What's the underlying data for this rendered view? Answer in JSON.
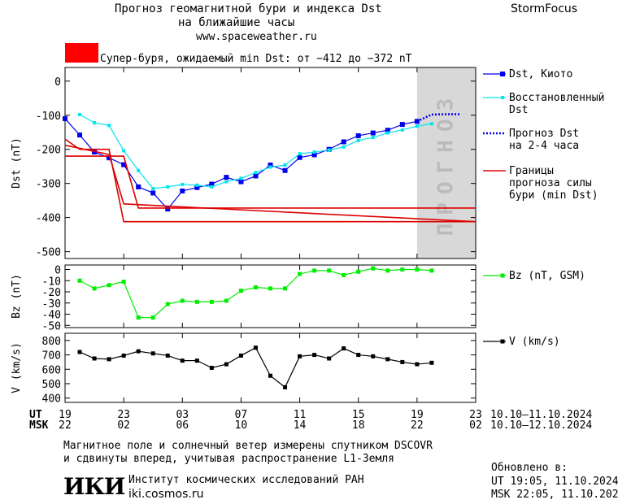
{
  "header": {
    "title_line1": "Прогноз геомагнитной бури и индекса Dst",
    "title_line2": "на ближайшие часы",
    "url": "www.spaceweather.ru",
    "brand": "StormFocus",
    "alert_text": "Супер-буря, ожидаемый min Dst: от −412 до −372 nT",
    "alert_color": "#ff0000"
  },
  "legend": {
    "dst_kyoto": "Dst, Киото",
    "dst_restored_l1": "Восстановленный",
    "dst_restored_l2": "Dst",
    "forecast_l1": "Прогноз Dst",
    "forecast_l2": "на 2-4 часа",
    "bounds_l1": "Границы",
    "bounds_l2": "прогноза силы",
    "bounds_l3": "бури (min Dst)",
    "bz": "Bz (nT, GSM)",
    "v": "V (km/s)"
  },
  "forecast_label": "ПРОГНОЗ",
  "time_axis": {
    "ut_label": "UT",
    "msk_label": "MSK",
    "ut_ticks": [
      "19",
      "23",
      "03",
      "07",
      "11",
      "15",
      "19",
      "23"
    ],
    "msk_ticks": [
      "22",
      "02",
      "06",
      "10",
      "14",
      "18",
      "22",
      "02"
    ],
    "ut_range": "10.10–11.10.2024",
    "msk_range": "10.10–12.10.2024"
  },
  "footer": {
    "note_l1": "Магнитное поле и солнечный ветер измерены спутником DSCOVR",
    "note_l2": "и сдвинуты вперед, учитывая распространение L1-Земля",
    "logo": "ИКИ",
    "inst_name": "Институт космических исследований РАН",
    "inst_url": "iki.cosmos.ru",
    "updated_label": "Обновлено в:",
    "updated_ut": "UT  19:05, 11.10.2024",
    "updated_msk": "MSK 22:05, 11.10.2024"
  },
  "colors": {
    "dst": "#0000ee",
    "restored": "#00e5ee",
    "forecast": "#0000ee",
    "bounds": "#dd0000",
    "bz": "#00ee00",
    "v": "#000000",
    "forecast_zone": "#d8d8d8"
  },
  "chart_data": [
    {
      "type": "line",
      "ylabel": "Dst (nT)",
      "ylim": [
        -520,
        40
      ],
      "yticks": [
        0,
        -100,
        -200,
        -300,
        -400,
        -500
      ],
      "x_unit": "hours from 19 UT 10.10.2024",
      "xlim": [
        0,
        28
      ],
      "forecast_zone": [
        24,
        28
      ],
      "series": [
        {
          "name": "Dst, Киото",
          "x": [
            0,
            1,
            2,
            3,
            4,
            5,
            6,
            7,
            8,
            9,
            10,
            11,
            12,
            13,
            14,
            15,
            16,
            17,
            18,
            19,
            20,
            21,
            22,
            23,
            24
          ],
          "values": [
            -110,
            -158,
            -208,
            -225,
            -245,
            -310,
            -328,
            -375,
            -322,
            -312,
            -302,
            -282,
            -295,
            -278,
            -246,
            -262,
            -224,
            -216,
            -200,
            -178,
            -160,
            -152,
            -144,
            -127,
            -118
          ]
        },
        {
          "name": "Восстановленный Dst",
          "x": [
            1,
            2,
            3,
            4,
            5,
            6,
            7,
            8,
            9,
            10,
            11,
            12,
            13,
            14,
            15,
            16,
            17,
            18,
            19,
            20,
            21,
            22,
            23,
            24,
            25
          ],
          "values": [
            -98,
            -122,
            -130,
            -204,
            -262,
            -315,
            -310,
            -303,
            -305,
            -310,
            -295,
            -285,
            -268,
            -252,
            -246,
            -213,
            -208,
            -202,
            -193,
            -174,
            -165,
            -152,
            -143,
            -132,
            -125
          ]
        },
        {
          "name": "Прогноз Dst на 2-4 часа",
          "x": [
            24,
            25,
            26,
            27
          ],
          "values": [
            -118,
            -98,
            -97,
            -97
          ]
        },
        {
          "name": "Границы прогноза силы бури (min Dst)",
          "x": [
            0,
            3,
            4,
            5,
            28
          ],
          "values": [
            -220,
            -220,
            -220,
            -372,
            -372
          ]
        },
        {
          "name": "",
          "x": [
            0,
            1,
            3,
            4,
            28
          ],
          "values": [
            -170,
            -200,
            -200,
            -412,
            -412
          ]
        },
        {
          "name": "",
          "x": [
            0,
            3,
            4,
            28
          ],
          "values": [
            -188,
            -215,
            -360,
            -412
          ]
        }
      ]
    },
    {
      "type": "line",
      "ylabel": "Bz (nT)",
      "ylim": [
        -52,
        4
      ],
      "yticks": [
        0,
        -10,
        -20,
        -30,
        -40,
        -50
      ],
      "xlim": [
        0,
        28
      ],
      "series": [
        {
          "name": "Bz (nT, GSM)",
          "x": [
            1,
            2,
            3,
            4,
            5,
            6,
            7,
            8,
            9,
            10,
            11,
            12,
            13,
            14,
            15,
            16,
            17,
            18,
            19,
            20,
            21,
            22,
            23,
            24,
            25
          ],
          "values": [
            -10,
            -17,
            -14,
            -11,
            -43,
            -43,
            -31,
            -28,
            -29,
            -29,
            -28,
            -19,
            -16,
            -17,
            -17,
            -4,
            -1,
            -1,
            -5,
            -2,
            1,
            -1,
            0,
            0,
            -1
          ]
        }
      ]
    },
    {
      "type": "line",
      "ylabel": "V (km/s)",
      "ylim": [
        370,
        850
      ],
      "yticks": [
        800,
        700,
        600,
        500,
        400
      ],
      "xlim": [
        0,
        28
      ],
      "series": [
        {
          "name": "V (km/s)",
          "x": [
            1,
            2,
            3,
            4,
            5,
            6,
            7,
            8,
            9,
            10,
            11,
            12,
            13,
            14,
            15,
            16,
            17,
            18,
            19,
            20,
            21,
            22,
            23,
            24,
            25
          ],
          "values": [
            720,
            675,
            670,
            695,
            725,
            710,
            695,
            660,
            660,
            610,
            635,
            695,
            750,
            555,
            475,
            690,
            700,
            675,
            745,
            700,
            690,
            670,
            650,
            635,
            645
          ]
        }
      ]
    }
  ]
}
